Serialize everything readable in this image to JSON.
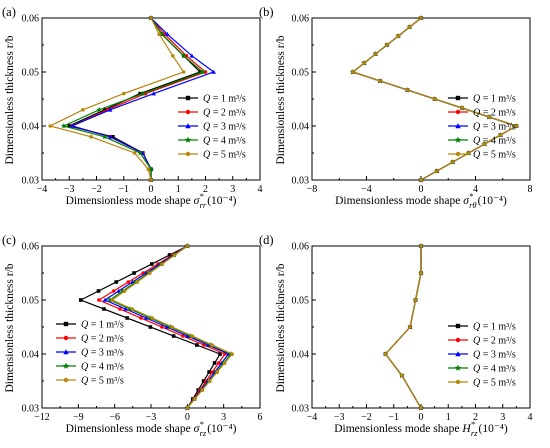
{
  "figure": {
    "ylabel": "Dimensionless thickness r/b",
    "xlabel_prefix": "Dimensionless mode shape",
    "legend_prefix": "Q",
    "legend_units": "m³/s"
  },
  "chart_data": [
    {
      "panel_label": "(a)",
      "type": "line",
      "xlabel": "Dimensionless mode shape σ*rr (10⁻⁴)",
      "xlabel_symbol": "σ",
      "xlabel_sup": "*",
      "xlabel_sub": "rr",
      "xlabel_unit": "(10⁻⁴)",
      "xlim": [
        -4,
        4
      ],
      "ylim": [
        0.03,
        0.06
      ],
      "xticks": [
        -4,
        -3,
        -2,
        -1,
        0,
        1,
        2,
        3,
        4
      ],
      "yticks": [
        0.03,
        0.04,
        0.05,
        0.06
      ],
      "legend_position": "center-right",
      "series": [
        {
          "name": "Q = 1 m³/s",
          "color": "#000000",
          "marker": "square",
          "points": [
            [
              0,
              0.03
            ],
            [
              0,
              0.032
            ],
            [
              -0.3,
              0.035
            ],
            [
              -1.4,
              0.038
            ],
            [
              -3.0,
              0.04
            ],
            [
              -1.7,
              0.043
            ],
            [
              -0.4,
              0.046
            ],
            [
              1.8,
              0.05
            ],
            [
              1.2,
              0.053
            ],
            [
              0.4,
              0.057
            ],
            [
              0,
              0.06
            ]
          ]
        },
        {
          "name": "Q = 2 m³/s",
          "color": "#ff0000",
          "marker": "circle",
          "points": [
            [
              0,
              0.03
            ],
            [
              0,
              0.032
            ],
            [
              -0.3,
              0.035
            ],
            [
              -1.5,
              0.038
            ],
            [
              -2.9,
              0.04
            ],
            [
              -1.6,
              0.043
            ],
            [
              -0.2,
              0.046
            ],
            [
              2.0,
              0.05
            ],
            [
              1.3,
              0.053
            ],
            [
              0.5,
              0.057
            ],
            [
              0,
              0.06
            ]
          ]
        },
        {
          "name": "Q = 3 m³/s",
          "color": "#0000ff",
          "marker": "triangle",
          "points": [
            [
              0,
              0.03
            ],
            [
              0,
              0.032
            ],
            [
              -0.3,
              0.035
            ],
            [
              -1.5,
              0.038
            ],
            [
              -2.9,
              0.04
            ],
            [
              -1.5,
              0.043
            ],
            [
              0.1,
              0.046
            ],
            [
              2.3,
              0.05
            ],
            [
              1.5,
              0.053
            ],
            [
              0.6,
              0.057
            ],
            [
              0,
              0.06
            ]
          ]
        },
        {
          "name": "Q = 4 m³/s",
          "color": "#008000",
          "marker": "star",
          "points": [
            [
              0,
              0.03
            ],
            [
              0,
              0.032
            ],
            [
              -0.4,
              0.035
            ],
            [
              -1.7,
              0.038
            ],
            [
              -3.2,
              0.04
            ],
            [
              -1.9,
              0.043
            ],
            [
              -0.3,
              0.046
            ],
            [
              1.9,
              0.05
            ],
            [
              1.2,
              0.053
            ],
            [
              0.4,
              0.057
            ],
            [
              0,
              0.06
            ]
          ]
        },
        {
          "name": "Q = 5 m³/s",
          "color": "#b8860b",
          "marker": "circle",
          "points": [
            [
              0,
              0.03
            ],
            [
              -0.1,
              0.032
            ],
            [
              -0.6,
              0.035
            ],
            [
              -2.2,
              0.038
            ],
            [
              -3.7,
              0.04
            ],
            [
              -2.5,
              0.043
            ],
            [
              -1.0,
              0.046
            ],
            [
              1.2,
              0.05
            ],
            [
              0.8,
              0.053
            ],
            [
              0.3,
              0.057
            ],
            [
              0,
              0.06
            ]
          ]
        }
      ]
    },
    {
      "panel_label": "(b)",
      "type": "line",
      "xlabel": "Dimensionless mode shape σ*rθ (10⁻⁴)",
      "xlabel_symbol": "σ",
      "xlabel_sup": "*",
      "xlabel_sub": "rθ",
      "xlabel_unit": "(10⁻⁴)",
      "xlim": [
        -8,
        8
      ],
      "ylim": [
        0.03,
        0.06
      ],
      "xticks": [
        -8,
        -4,
        0,
        4,
        8
      ],
      "yticks": [
        0.03,
        0.04,
        0.05,
        0.06
      ],
      "legend_position": "center-right",
      "series": [
        {
          "name": "Q = 1 m³/s",
          "color": "#000000",
          "marker": "square",
          "points": [
            [
              0,
              0.03
            ],
            [
              7,
              0.04
            ],
            [
              -5,
              0.05
            ],
            [
              0,
              0.06
            ]
          ]
        },
        {
          "name": "Q = 2 m³/s",
          "color": "#ff0000",
          "marker": "circle",
          "points": [
            [
              0,
              0.03
            ],
            [
              7,
              0.04
            ],
            [
              -5,
              0.05
            ],
            [
              0,
              0.06
            ]
          ]
        },
        {
          "name": "Q = 3 m³/s",
          "color": "#0000ff",
          "marker": "triangle",
          "points": [
            [
              0,
              0.03
            ],
            [
              7,
              0.04
            ],
            [
              -5,
              0.05
            ],
            [
              0,
              0.06
            ]
          ]
        },
        {
          "name": "Q = 4 m³/s",
          "color": "#008000",
          "marker": "star",
          "points": [
            [
              0,
              0.03
            ],
            [
              7,
              0.04
            ],
            [
              -5,
              0.05
            ],
            [
              0,
              0.06
            ]
          ]
        },
        {
          "name": "Q = 5 m³/s",
          "color": "#b8860b",
          "marker": "circle",
          "points": [
            [
              0,
              0.03
            ],
            [
              7,
              0.04
            ],
            [
              -5,
              0.05
            ],
            [
              0,
              0.06
            ]
          ]
        }
      ]
    },
    {
      "panel_label": "(c)",
      "type": "line",
      "xlabel": "Dimensionless mode shape σ*rz (10⁻⁴)",
      "xlabel_symbol": "σ",
      "xlabel_sup": "*",
      "xlabel_sub": "rz",
      "xlabel_unit": "(10⁻⁴)",
      "xlim": [
        -12,
        6
      ],
      "ylim": [
        0.03,
        0.06
      ],
      "xticks": [
        -12,
        -9,
        -6,
        -3,
        0,
        3,
        6
      ],
      "yticks": [
        0.03,
        0.04,
        0.05,
        0.06
      ],
      "legend_position": "lower-left",
      "series": [
        {
          "name": "Q = 1 m³/s",
          "color": "#000000",
          "marker": "square",
          "points": [
            [
              0,
              0.03
            ],
            [
              2.7,
              0.04
            ],
            [
              -8.8,
              0.05
            ],
            [
              0,
              0.06
            ]
          ]
        },
        {
          "name": "Q = 2 m³/s",
          "color": "#ff0000",
          "marker": "circle",
          "points": [
            [
              0,
              0.03
            ],
            [
              3.1,
              0.04
            ],
            [
              -7.3,
              0.05
            ],
            [
              0,
              0.06
            ]
          ]
        },
        {
          "name": "Q = 3 m³/s",
          "color": "#0000ff",
          "marker": "triangle",
          "points": [
            [
              0,
              0.03
            ],
            [
              3.4,
              0.04
            ],
            [
              -6.8,
              0.05
            ],
            [
              0,
              0.06
            ]
          ]
        },
        {
          "name": "Q = 4 m³/s",
          "color": "#008000",
          "marker": "star",
          "points": [
            [
              0,
              0.03
            ],
            [
              3.6,
              0.04
            ],
            [
              -6.4,
              0.05
            ],
            [
              0,
              0.06
            ]
          ]
        },
        {
          "name": "Q = 5 m³/s",
          "color": "#b8860b",
          "marker": "circle",
          "points": [
            [
              0,
              0.03
            ],
            [
              3.7,
              0.04
            ],
            [
              -6.2,
              0.05
            ],
            [
              0,
              0.06
            ]
          ]
        }
      ]
    },
    {
      "panel_label": "(d)",
      "type": "line",
      "xlabel": "Dimensionless mode shape H*rz (10⁻⁴)",
      "xlabel_symbol": "H",
      "xlabel_sup": "*",
      "xlabel_sub": "rz",
      "xlabel_unit": "(10⁻⁴)",
      "xlim": [
        -4,
        4
      ],
      "ylim": [
        0.03,
        0.06
      ],
      "xticks": [
        -4,
        -3,
        -2,
        -1,
        0,
        1,
        2,
        3,
        4
      ],
      "yticks": [
        0.03,
        0.04,
        0.05,
        0.06
      ],
      "legend_position": "center-right",
      "series": [
        {
          "name": "Q = 1 m³/s",
          "color": "#000000",
          "marker": "square",
          "points": [
            [
              0,
              0.03
            ],
            [
              -0.7,
              0.036
            ],
            [
              -1.3,
              0.04
            ],
            [
              -0.4,
              0.045
            ],
            [
              -0.2,
              0.05
            ],
            [
              0,
              0.055
            ],
            [
              0,
              0.06
            ]
          ]
        },
        {
          "name": "Q = 2 m³/s",
          "color": "#ff0000",
          "marker": "circle",
          "points": [
            [
              0,
              0.03
            ],
            [
              -0.7,
              0.036
            ],
            [
              -1.3,
              0.04
            ],
            [
              -0.4,
              0.045
            ],
            [
              -0.2,
              0.05
            ],
            [
              0,
              0.055
            ],
            [
              0,
              0.06
            ]
          ]
        },
        {
          "name": "Q = 3 m³/s",
          "color": "#0000ff",
          "marker": "triangle",
          "points": [
            [
              0,
              0.03
            ],
            [
              -0.7,
              0.036
            ],
            [
              -1.3,
              0.04
            ],
            [
              -0.4,
              0.045
            ],
            [
              -0.2,
              0.05
            ],
            [
              0,
              0.055
            ],
            [
              0,
              0.06
            ]
          ]
        },
        {
          "name": "Q = 4 m³/s",
          "color": "#008000",
          "marker": "star",
          "points": [
            [
              0,
              0.03
            ],
            [
              -0.7,
              0.036
            ],
            [
              -1.3,
              0.04
            ],
            [
              -0.4,
              0.045
            ],
            [
              -0.2,
              0.05
            ],
            [
              0,
              0.055
            ],
            [
              0,
              0.06
            ]
          ]
        },
        {
          "name": "Q = 5 m³/s",
          "color": "#b8860b",
          "marker": "circle",
          "points": [
            [
              0,
              0.03
            ],
            [
              -0.7,
              0.036
            ],
            [
              -1.3,
              0.04
            ],
            [
              -0.4,
              0.045
            ],
            [
              -0.2,
              0.05
            ],
            [
              0,
              0.055
            ],
            [
              0,
              0.06
            ]
          ]
        }
      ]
    }
  ]
}
